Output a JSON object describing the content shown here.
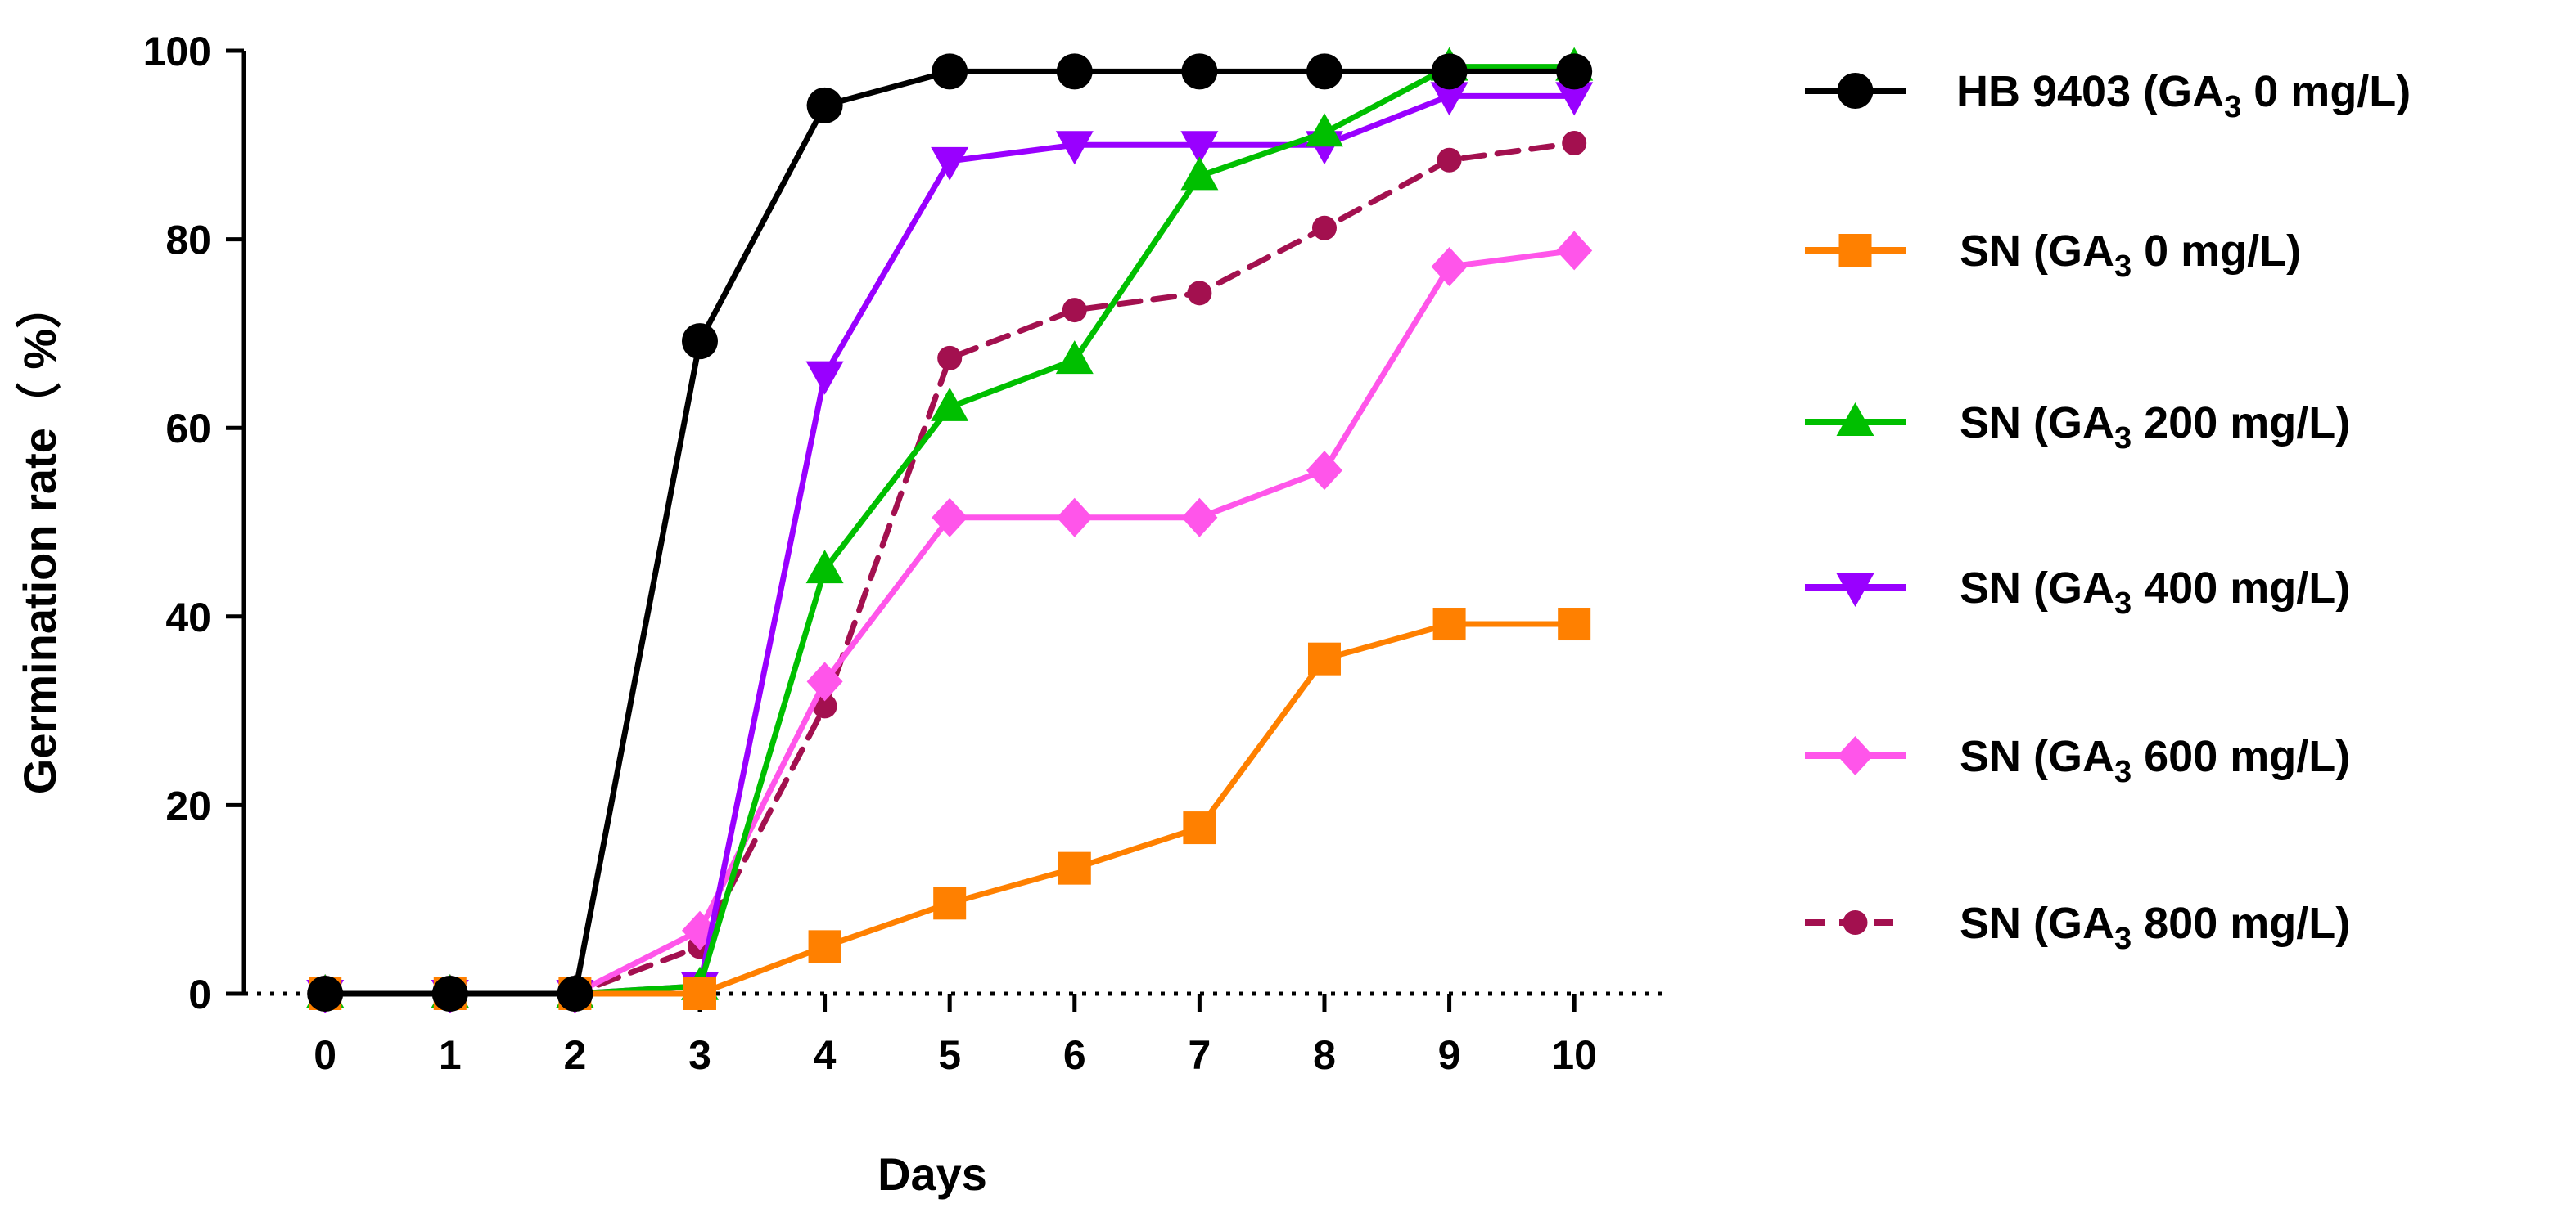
{
  "chart_data": {
    "type": "line",
    "title": "",
    "xlabel": "Days",
    "ylabel": "Germination rate（ %）",
    "x": [
      0,
      1,
      2,
      3,
      4,
      5,
      6,
      7,
      8,
      9,
      10
    ],
    "x_tick_labels": [
      "0",
      "1",
      "2",
      "3",
      "4",
      "5",
      "6",
      "7",
      "8",
      "9",
      "10"
    ],
    "y_ticks": [
      0,
      20,
      40,
      60,
      80,
      100
    ],
    "y_tick_labels": [
      "0",
      "20",
      "40",
      "60",
      "80",
      "100"
    ],
    "xlim": [
      -0.65,
      10.7
    ],
    "ylim": [
      0,
      100
    ],
    "grid": false,
    "legend_position": "right",
    "series": [
      {
        "name": "HB 9403 (GA3 0 mg/L)",
        "legend_prefix": "HB 9403 (GA",
        "legend_sub": "3",
        "legend_suffix": " 0 mg/L)",
        "color": "#000000",
        "marker": "circle",
        "dash": "solid",
        "values": [
          0,
          0,
          0,
          69.2,
          94.2,
          97.8,
          97.8,
          97.8,
          97.8,
          97.8,
          97.8
        ]
      },
      {
        "name": "SN (GA3 0 mg/L)",
        "legend_prefix": "SN (GA",
        "legend_sub": "3",
        "legend_suffix": " 0 mg/L)",
        "color": "#ff8000",
        "marker": "square",
        "dash": "solid",
        "values": [
          0,
          0,
          0,
          0,
          5.0,
          9.6,
          13.3,
          17.6,
          35.5,
          39.2,
          39.2
        ]
      },
      {
        "name": "SN (GA3 200 mg/L)",
        "legend_prefix": "SN (GA",
        "legend_sub": "3",
        "legend_suffix": " 200 mg/L)",
        "color": "#00bf00",
        "marker": "triangle-up",
        "dash": "solid",
        "values": [
          0,
          0,
          0,
          0.8,
          45.0,
          62.2,
          67.2,
          86.7,
          91.3,
          98.3,
          98.3
        ]
      },
      {
        "name": "SN (GA3 400 mg/L)",
        "legend_prefix": "SN (GA",
        "legend_sub": "3",
        "legend_suffix": " 400 mg/L)",
        "color": "#9900ff",
        "marker": "triangle-down",
        "dash": "solid",
        "values": [
          0,
          0,
          0,
          0.8,
          65.6,
          88.3,
          90.0,
          90.0,
          90.0,
          95.2,
          95.2
        ]
      },
      {
        "name": "SN (GA3 600 mg/L)",
        "legend_prefix": "SN (GA",
        "legend_sub": "3",
        "legend_suffix": " 600 mg/L)",
        "color": "#ff55ea",
        "marker": "diamond",
        "dash": "solid",
        "values": [
          0,
          0,
          0,
          6.7,
          33.1,
          50.5,
          50.5,
          50.5,
          55.5,
          77.1,
          78.8
        ]
      },
      {
        "name": "SN (GA3 800 mg/L)",
        "legend_prefix": "SN (GA",
        "legend_sub": "3",
        "legend_suffix": " 800 mg/L)",
        "color": "#a3104f",
        "marker": "circle-small",
        "dash": "dashed",
        "values": [
          0,
          0,
          0,
          5.0,
          30.5,
          67.4,
          72.5,
          74.3,
          81.2,
          88.4,
          90.2
        ]
      }
    ]
  }
}
